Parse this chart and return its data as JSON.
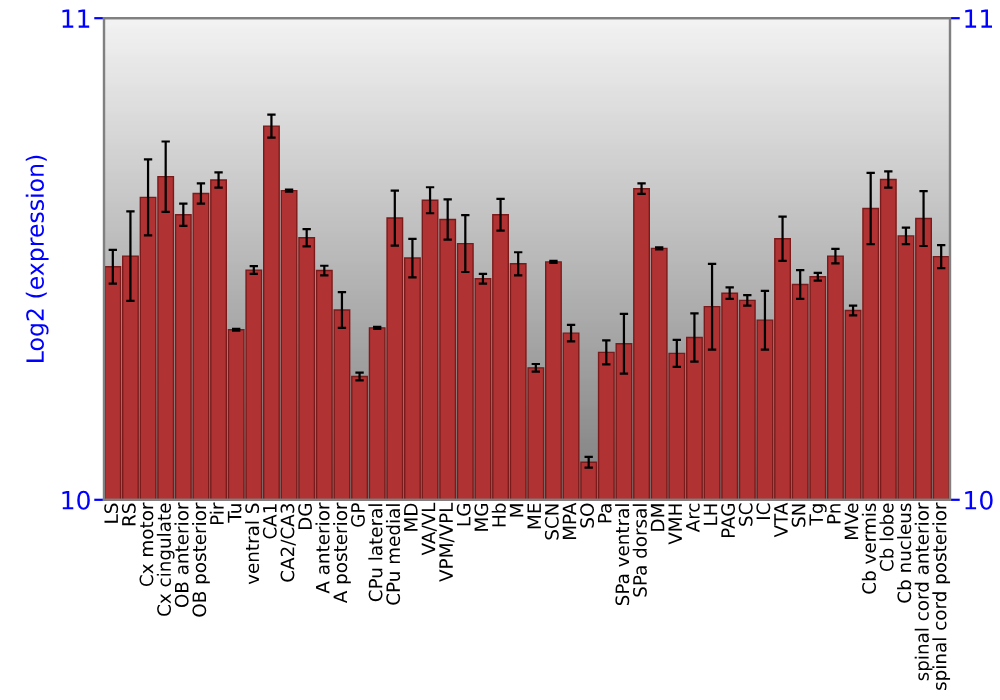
{
  "chart_data": {
    "type": "bar",
    "ylabel": "Log2 (expression)",
    "categories": [
      "LS",
      "RS",
      "Cx motor",
      "Cx cingulate",
      "OB anterior",
      "OB posterior",
      "Pir",
      "Tu",
      "ventral S",
      "CA1",
      "CA2/CA3",
      "DG",
      "A anterior",
      "A posterior",
      "GP",
      "CPu lateral",
      "CPu medial",
      "MD",
      "VA/VL",
      "VPM/VPL",
      "LG",
      "MG",
      "Hb",
      "M",
      "ME",
      "SCN",
      "MPA",
      "SO",
      "Pa",
      "SPa ventral",
      "SPa dorsal",
      "DM",
      "VMH",
      "Arc",
      "LH",
      "PAG",
      "SC",
      "IC",
      "VTA",
      "SN",
      "Tg",
      "Pn",
      "MVe",
      "Cb vermis",
      "Cb lobe",
      "Cb nucleus",
      "spinal cord anterior",
      "spinal cord posterior"
    ],
    "values": [
      10.484,
      10.506,
      10.628,
      10.671,
      10.592,
      10.636,
      10.664,
      10.353,
      10.477,
      10.776,
      10.642,
      10.544,
      10.476,
      10.394,
      10.256,
      10.357,
      10.585,
      10.502,
      10.622,
      10.582,
      10.532,
      10.459,
      10.592,
      10.49,
      10.274,
      10.494,
      10.346,
      10.078,
      10.306,
      10.324,
      10.646,
      10.522,
      10.304,
      10.337,
      10.401,
      10.429,
      10.414,
      10.373,
      10.542,
      10.447,
      10.463,
      10.506,
      10.393,
      10.605,
      10.665,
      10.548,
      10.584,
      10.505
    ],
    "errors": [
      0.035,
      0.093,
      0.079,
      0.073,
      0.023,
      0.021,
      0.016,
      0.002,
      0.008,
      0.024,
      0.002,
      0.018,
      0.01,
      0.037,
      0.008,
      0.002,
      0.057,
      0.04,
      0.027,
      0.042,
      0.059,
      0.01,
      0.033,
      0.024,
      0.008,
      0.002,
      0.017,
      0.011,
      0.025,
      0.062,
      0.011,
      0.002,
      0.028,
      0.05,
      0.089,
      0.012,
      0.011,
      0.061,
      0.046,
      0.03,
      0.008,
      0.015,
      0.01,
      0.074,
      0.017,
      0.017,
      0.057,
      0.024
    ],
    "color": "#b03232",
    "ylim": [
      10,
      11
    ],
    "yticks": [
      10,
      11
    ],
    "y2lim": [
      10,
      11
    ],
    "y2ticks": [
      10,
      11
    ],
    "grid": false,
    "legend": false
  }
}
